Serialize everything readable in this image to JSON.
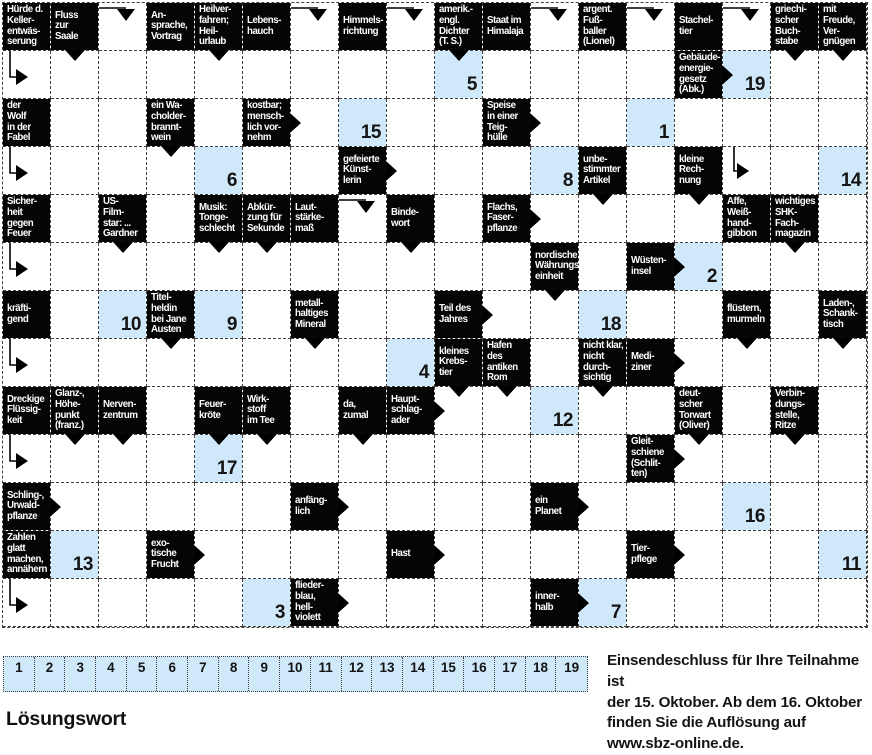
{
  "colors": {
    "blue": "#cfe9fa",
    "black": "#050505",
    "dash": "#3f3f3f",
    "page": "#ffffff"
  },
  "grid": {
    "rows": 13,
    "cols": 18,
    "cells": {
      "1-1": {
        "t": "b",
        "text": "Hürde d.\nKeller-\nentwäs-\nserung"
      },
      "1-2": {
        "t": "b",
        "text": "Fluss\nzur\nSaale",
        "m": [
          "d"
        ]
      },
      "1-3": {
        "t": "w",
        "e": "a"
      },
      "1-4": {
        "t": "b",
        "text": "An-\nsprache,\nVortrag"
      },
      "1-5": {
        "t": "b",
        "text": "Heilver-\nfahren;\nHeil-\nurlaub",
        "m": [
          "d"
        ]
      },
      "1-6": {
        "t": "b",
        "text": "Lebens-\nhauch"
      },
      "1-7": {
        "t": "w",
        "e": "a"
      },
      "1-8": {
        "t": "b",
        "text": "Himmels-\nrichtung"
      },
      "1-9": {
        "t": "w",
        "e": "a"
      },
      "1-10": {
        "t": "b",
        "text": "amerik.-\nengl.\nDichter\n(T. S.)",
        "m": [
          "d"
        ]
      },
      "1-11": {
        "t": "b",
        "text": "Staat im\nHimalaja"
      },
      "1-12": {
        "t": "w",
        "e": "a"
      },
      "1-13": {
        "t": "b",
        "text": "argent.\nFuß-\nballer\n(Lionel)"
      },
      "1-14": {
        "t": "w",
        "e": "a"
      },
      "1-15": {
        "t": "b",
        "text": "Stachel-\ntier"
      },
      "1-16": {
        "t": "w",
        "e": "a"
      },
      "1-17": {
        "t": "b",
        "text": "griechi-\nscher\nBuch-\nstabe",
        "m": [
          "d"
        ]
      },
      "1-18": {
        "t": "b",
        "text": "mit\nFreude,\nVer-\ngnügen",
        "m": [
          "d"
        ]
      },
      "2-1": {
        "t": "w",
        "e": "b"
      },
      "2-10": {
        "t": "n",
        "n": "5"
      },
      "2-15": {
        "t": "b",
        "text": "Gebäude-\nenergie-\ngesetz\n(Abk.)",
        "m": [
          "r"
        ]
      },
      "2-16": {
        "t": "n",
        "n": "19"
      },
      "3-1": {
        "t": "b",
        "text": "der\nWolf\nin der\nFabel"
      },
      "3-4": {
        "t": "b",
        "text": "ein Wa-\ncholder-\nbrannt-\nwein",
        "m": [
          "d"
        ]
      },
      "3-6": {
        "t": "b",
        "text": "kostbar;\nmensch-\nlich vor-\nnehm",
        "m": [
          "r"
        ]
      },
      "3-8": {
        "t": "n",
        "n": "15"
      },
      "3-11": {
        "t": "b",
        "text": "Speise\nin einer\nTeig-\nhülle",
        "m": [
          "r"
        ]
      },
      "3-14": {
        "t": "n",
        "n": "1"
      },
      "4-1": {
        "t": "w",
        "e": "b"
      },
      "4-5": {
        "t": "n",
        "n": "6"
      },
      "4-8": {
        "t": "b",
        "text": "gefeierte\nKünst-\nlerin",
        "m": [
          "r"
        ]
      },
      "4-12": {
        "t": "n",
        "n": "8"
      },
      "4-13": {
        "t": "b",
        "text": "unbe-\nstimmter\nArtikel",
        "m": [
          "d"
        ]
      },
      "4-15": {
        "t": "b",
        "text": "kleine\nRech-\nnung",
        "m": [
          "d"
        ]
      },
      "4-16": {
        "t": "w",
        "e": "d"
      },
      "4-18": {
        "t": "n",
        "n": "14"
      },
      "5-1": {
        "t": "b",
        "text": "Sicher-\nheit\ngegen\nFeuer"
      },
      "5-3": {
        "t": "b",
        "text": "US-\nFilm-\nstar: ...\nGardner",
        "m": [
          "d"
        ]
      },
      "5-5": {
        "t": "b",
        "text": "Musik:\nTonge-\nschlecht",
        "m": [
          "d"
        ]
      },
      "5-6": {
        "t": "b",
        "text": "Abkür-\nzung für\nSekunde",
        "m": [
          "d"
        ]
      },
      "5-7": {
        "t": "b",
        "text": "Laut-\nstärke-\nmaß"
      },
      "5-8": {
        "t": "w",
        "e": "a"
      },
      "5-9": {
        "t": "b",
        "text": "Binde-\nwort",
        "m": [
          "d"
        ]
      },
      "5-11": {
        "t": "b",
        "text": "Flachs,\nFaser-\npflanze",
        "m": [
          "r"
        ]
      },
      "5-16": {
        "t": "b",
        "text": "Affe,\nWeiß-\nhand-\ngibbon"
      },
      "5-17": {
        "t": "b",
        "text": "wichtiges\nSHK-\nFach-\nmagazin",
        "m": [
          "d"
        ]
      },
      "6-1": {
        "t": "w",
        "e": "b"
      },
      "6-12": {
        "t": "b",
        "text": "nordische\nWährungs-\neinheit",
        "m": [
          "d"
        ]
      },
      "6-14": {
        "t": "b",
        "text": "Wüsten-\ninsel",
        "m": [
          "r"
        ]
      },
      "6-15": {
        "t": "n",
        "n": "2"
      },
      "7-1": {
        "t": "b",
        "text": "kräfti-\ngend"
      },
      "7-3": {
        "t": "n",
        "n": "10"
      },
      "7-4": {
        "t": "b",
        "text": "Titel-\nheldin\nbei Jane\nAusten",
        "m": [
          "d"
        ]
      },
      "7-5": {
        "t": "n",
        "n": "9"
      },
      "7-7": {
        "t": "b",
        "text": "metall-\nhaltiges\nMineral",
        "m": [
          "d"
        ]
      },
      "7-10": {
        "t": "b",
        "text": "Teil des\nJahres",
        "m": [
          "r"
        ]
      },
      "7-13": {
        "t": "n",
        "n": "18"
      },
      "7-16": {
        "t": "b",
        "text": "flüstern,\nmurmeln",
        "m": [
          "d"
        ]
      },
      "7-18": {
        "t": "b",
        "text": "Laden-,\nSchank-\ntisch",
        "m": [
          "d"
        ]
      },
      "8-1": {
        "t": "w",
        "e": "b"
      },
      "8-9": {
        "t": "n",
        "n": "4"
      },
      "8-10": {
        "t": "b",
        "text": "kleines\nKrebs-\ntier",
        "m": [
          "d"
        ]
      },
      "8-11": {
        "t": "b",
        "text": "Hafen\ndes\nantiken\nRom",
        "m": [
          "d"
        ]
      },
      "8-13": {
        "t": "b",
        "text": "nicht klar,\nnicht\ndurch-\nsichtig",
        "m": [
          "d"
        ]
      },
      "8-14": {
        "t": "b",
        "text": "Medi-\nziner",
        "m": [
          "r"
        ]
      },
      "9-1": {
        "t": "b",
        "text": "Dreckige\nFlüssig-\nkeit"
      },
      "9-2": {
        "t": "b",
        "text": "Glanz-,\nHöhe-\npunkt\n(franz.)",
        "m": [
          "d"
        ]
      },
      "9-3": {
        "t": "b",
        "text": "Nerven-\nzentrum",
        "m": [
          "d"
        ]
      },
      "9-5": {
        "t": "b",
        "text": "Feuer-\nkröte",
        "m": [
          "d"
        ]
      },
      "9-6": {
        "t": "b",
        "text": "Wirk-\nstoff\nim Tee",
        "m": [
          "d"
        ]
      },
      "9-8": {
        "t": "b",
        "text": "da,\nzumal",
        "m": [
          "d"
        ]
      },
      "9-9": {
        "t": "b",
        "text": "Haupt-\nschlag-\nader",
        "m": [
          "r"
        ]
      },
      "9-12": {
        "t": "n",
        "n": "12"
      },
      "9-15": {
        "t": "b",
        "text": "deut-\nscher\nTorwart\n(Oliver)",
        "m": [
          "d"
        ]
      },
      "9-17": {
        "t": "b",
        "text": "Verbin-\ndungs-\nstelle,\nRitze",
        "m": [
          "d"
        ]
      },
      "10-1": {
        "t": "w",
        "e": "b"
      },
      "10-5": {
        "t": "n",
        "n": "17"
      },
      "10-14": {
        "t": "b",
        "text": "Gleit-\nschiene\n(Schlit-\nten)",
        "m": [
          "r"
        ]
      },
      "11-1": {
        "t": "b",
        "text": "Schling-,\nUrwald-\npflanze",
        "m": [
          "r"
        ]
      },
      "11-7": {
        "t": "b",
        "text": "anfäng-\nlich",
        "m": [
          "r"
        ]
      },
      "11-12": {
        "t": "b",
        "text": "ein\nPlanet",
        "m": [
          "r"
        ]
      },
      "11-16": {
        "t": "n",
        "n": "16"
      },
      "12-1": {
        "t": "b",
        "text": "Zahlen\nglatt\nmachen,\nannähern"
      },
      "12-2": {
        "t": "n",
        "n": "13"
      },
      "12-4": {
        "t": "b",
        "text": "exo-\ntische\nFrucht",
        "m": [
          "r"
        ]
      },
      "12-9": {
        "t": "b",
        "text": "Hast",
        "m": [
          "r"
        ]
      },
      "12-14": {
        "t": "b",
        "text": "Tier-\npflege",
        "m": [
          "r"
        ]
      },
      "12-18": {
        "t": "n",
        "n": "11"
      },
      "13-1": {
        "t": "w",
        "e": "b"
      },
      "13-6": {
        "t": "n",
        "n": "3"
      },
      "13-7": {
        "t": "b",
        "text": "flieder-\nblau,\nhell-\nviolett",
        "m": [
          "r"
        ]
      },
      "13-12": {
        "t": "b",
        "text": "inner-\nhalb",
        "m": [
          "r"
        ]
      },
      "13-13": {
        "t": "n",
        "n": "7"
      }
    }
  },
  "solution": {
    "label": "Lösungswort",
    "numbers": [
      "1",
      "2",
      "3",
      "4",
      "5",
      "6",
      "7",
      "8",
      "9",
      "10",
      "11",
      "12",
      "13",
      "14",
      "15",
      "16",
      "17",
      "18",
      "19"
    ]
  },
  "footer": {
    "lines": [
      "Einsendeschluss für Ihre Teilnahme ist",
      "der 15. Oktober. Ab dem 16. Oktober",
      "finden Sie die Auflösung auf",
      "www.sbz-online.de."
    ]
  }
}
